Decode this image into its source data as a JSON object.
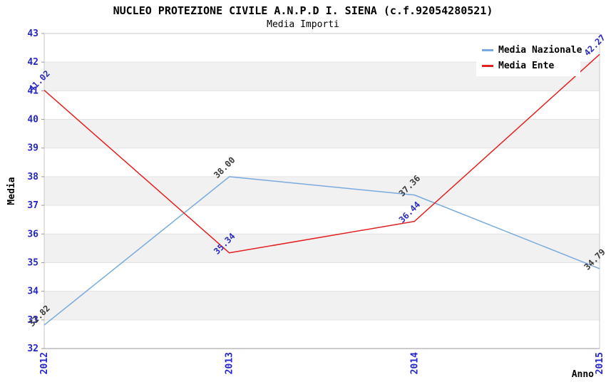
{
  "chart_data": {
    "type": "line",
    "title": "NUCLEO PROTEZIONE CIVILE A.N.P.D I. SIENA (c.f.92054280521)",
    "subtitle": "Media Importi",
    "xlabel": "Anno",
    "ylabel": "Media",
    "categories": [
      "2012",
      "2013",
      "2014",
      "2015"
    ],
    "ylim": [
      32,
      43
    ],
    "ytick_step": 1,
    "grid": "alternating-horizontal-bands",
    "legend_position": "top-right",
    "value_label_format": "2-decimals",
    "series": [
      {
        "name": "Media Nazionale",
        "color": "#78AADF",
        "label_color": "#3A3A3A",
        "values": [
          32.82,
          38.0,
          37.36,
          34.79
        ]
      },
      {
        "name": "Media Ente",
        "color": "#E32020",
        "label_color": "#2A2ABF",
        "values": [
          41.02,
          35.34,
          36.44,
          42.27
        ]
      }
    ]
  },
  "colors": {
    "tick_label": "#2424CC",
    "band_gray": "#F1F1F1",
    "band_white": "#FFFFFF",
    "gridline": "#E2E2E2",
    "plot_border": "#C8C8C8",
    "axis_line": "#9A9A9A",
    "tick_mark": "#999999",
    "axis_title": "#000000"
  }
}
